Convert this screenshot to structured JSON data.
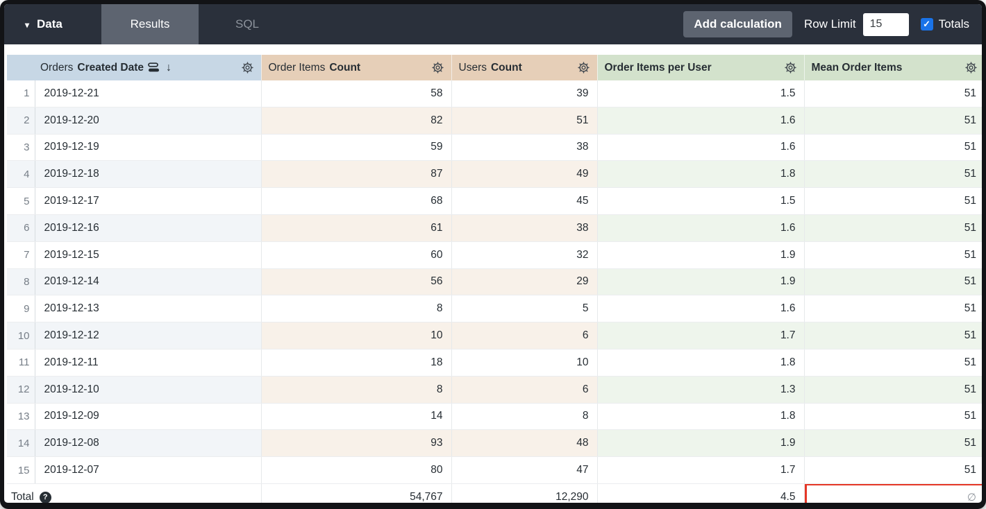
{
  "topbar": {
    "data_label": "Data",
    "tabs": [
      {
        "label": "Results",
        "active": true
      },
      {
        "label": "SQL",
        "active": false
      }
    ],
    "add_calculation_label": "Add calculation",
    "row_limit_label": "Row Limit",
    "row_limit_value": "15",
    "totals_label": "Totals",
    "totals_checked": true
  },
  "table": {
    "columns": [
      {
        "prefix": "Orders",
        "bold": "Created Date",
        "type": "dimension",
        "sorted_descending": true
      },
      {
        "prefix": "Order Items",
        "bold": "Count",
        "type": "measure"
      },
      {
        "prefix": "Users",
        "bold": "Count",
        "type": "measure"
      },
      {
        "prefix": "",
        "bold": "Order Items per User",
        "type": "table_calculation"
      },
      {
        "prefix": "",
        "bold": "Mean Order Items",
        "type": "table_calculation"
      }
    ],
    "rows": [
      {
        "n": "1",
        "date": "2019-12-21",
        "order_items": "58",
        "users": "39",
        "per_user": "1.5",
        "mean": "51"
      },
      {
        "n": "2",
        "date": "2019-12-20",
        "order_items": "82",
        "users": "51",
        "per_user": "1.6",
        "mean": "51"
      },
      {
        "n": "3",
        "date": "2019-12-19",
        "order_items": "59",
        "users": "38",
        "per_user": "1.6",
        "mean": "51"
      },
      {
        "n": "4",
        "date": "2019-12-18",
        "order_items": "87",
        "users": "49",
        "per_user": "1.8",
        "mean": "51"
      },
      {
        "n": "5",
        "date": "2019-12-17",
        "order_items": "68",
        "users": "45",
        "per_user": "1.5",
        "mean": "51"
      },
      {
        "n": "6",
        "date": "2019-12-16",
        "order_items": "61",
        "users": "38",
        "per_user": "1.6",
        "mean": "51"
      },
      {
        "n": "7",
        "date": "2019-12-15",
        "order_items": "60",
        "users": "32",
        "per_user": "1.9",
        "mean": "51"
      },
      {
        "n": "8",
        "date": "2019-12-14",
        "order_items": "56",
        "users": "29",
        "per_user": "1.9",
        "mean": "51"
      },
      {
        "n": "9",
        "date": "2019-12-13",
        "order_items": "8",
        "users": "5",
        "per_user": "1.6",
        "mean": "51"
      },
      {
        "n": "10",
        "date": "2019-12-12",
        "order_items": "10",
        "users": "6",
        "per_user": "1.7",
        "mean": "51"
      },
      {
        "n": "11",
        "date": "2019-12-11",
        "order_items": "18",
        "users": "10",
        "per_user": "1.8",
        "mean": "51"
      },
      {
        "n": "12",
        "date": "2019-12-10",
        "order_items": "8",
        "users": "6",
        "per_user": "1.3",
        "mean": "51"
      },
      {
        "n": "13",
        "date": "2019-12-09",
        "order_items": "14",
        "users": "8",
        "per_user": "1.8",
        "mean": "51"
      },
      {
        "n": "14",
        "date": "2019-12-08",
        "order_items": "93",
        "users": "48",
        "per_user": "1.9",
        "mean": "51"
      },
      {
        "n": "15",
        "date": "2019-12-07",
        "order_items": "80",
        "users": "47",
        "per_user": "1.7",
        "mean": "51"
      }
    ],
    "total": {
      "label": "Total",
      "order_items": "54,767",
      "users": "12,290",
      "per_user": "4.5",
      "mean_symbol": "∅"
    }
  },
  "icons": {
    "caret": "▾",
    "sort_arrow": "↓",
    "help": "?",
    "check": "✓",
    "empty_set": "∅"
  },
  "annotation": {
    "type": "highlight-box",
    "color": "#e53626",
    "target": "total-mean-order-items-cell"
  },
  "colors": {
    "topbar_bg": "#2a303b",
    "active_tab_bg": "#5d6470",
    "checkbox_blue": "#1a73e8",
    "dimension_header_bg": "#c7d7e5",
    "measure_header_bg": "#e6cfb8",
    "calc_header_bg": "#d3e2cc",
    "dimension_stripe": "#f2f5f8",
    "measure_stripe": "#f8f1e9",
    "calc_stripe": "#eef5ec",
    "annotation_red": "#e53626"
  }
}
